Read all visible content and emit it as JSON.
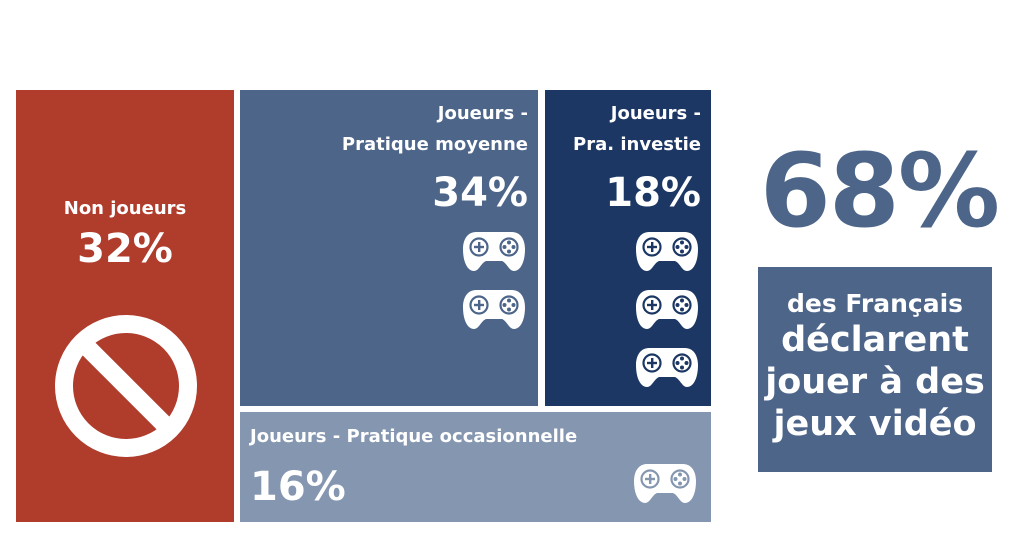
{
  "chart_data": {
    "type": "treemap",
    "categories": [
      "Non joueurs",
      "Joueurs - Pratique moyenne",
      "Joueurs - Pra. investie",
      "Joueurs - Pratique occasionnelle"
    ],
    "values": [
      32,
      34,
      18,
      16
    ],
    "unit": "%",
    "segments": [
      {
        "label": "Non joueurs",
        "value_label": "32%",
        "value": 32,
        "color": "#b03c2c",
        "icon": "prohibited-icon"
      },
      {
        "label": "Joueurs -\nPratique moyenne",
        "value_label": "34%",
        "value": 34,
        "color": "#4c6589",
        "icon": "gamepad-icon",
        "icon_count": 2
      },
      {
        "label": "Joueurs -\nPra. investie",
        "value_label": "18%",
        "value": 18,
        "color": "#1c3764",
        "icon": "gamepad-icon",
        "icon_count": 3
      },
      {
        "label": "Joueurs - Pratique occasionnelle",
        "value_label": "16%",
        "value": 16,
        "color": "#8597b0",
        "icon": "gamepad-icon",
        "icon_count": 1
      }
    ],
    "callout": {
      "value_label": "68%",
      "value": 68,
      "line1": "des Français",
      "line2": "déclarent",
      "line3": "jouer à des",
      "line4": "jeux vidéo",
      "color": "#4c6589"
    }
  }
}
